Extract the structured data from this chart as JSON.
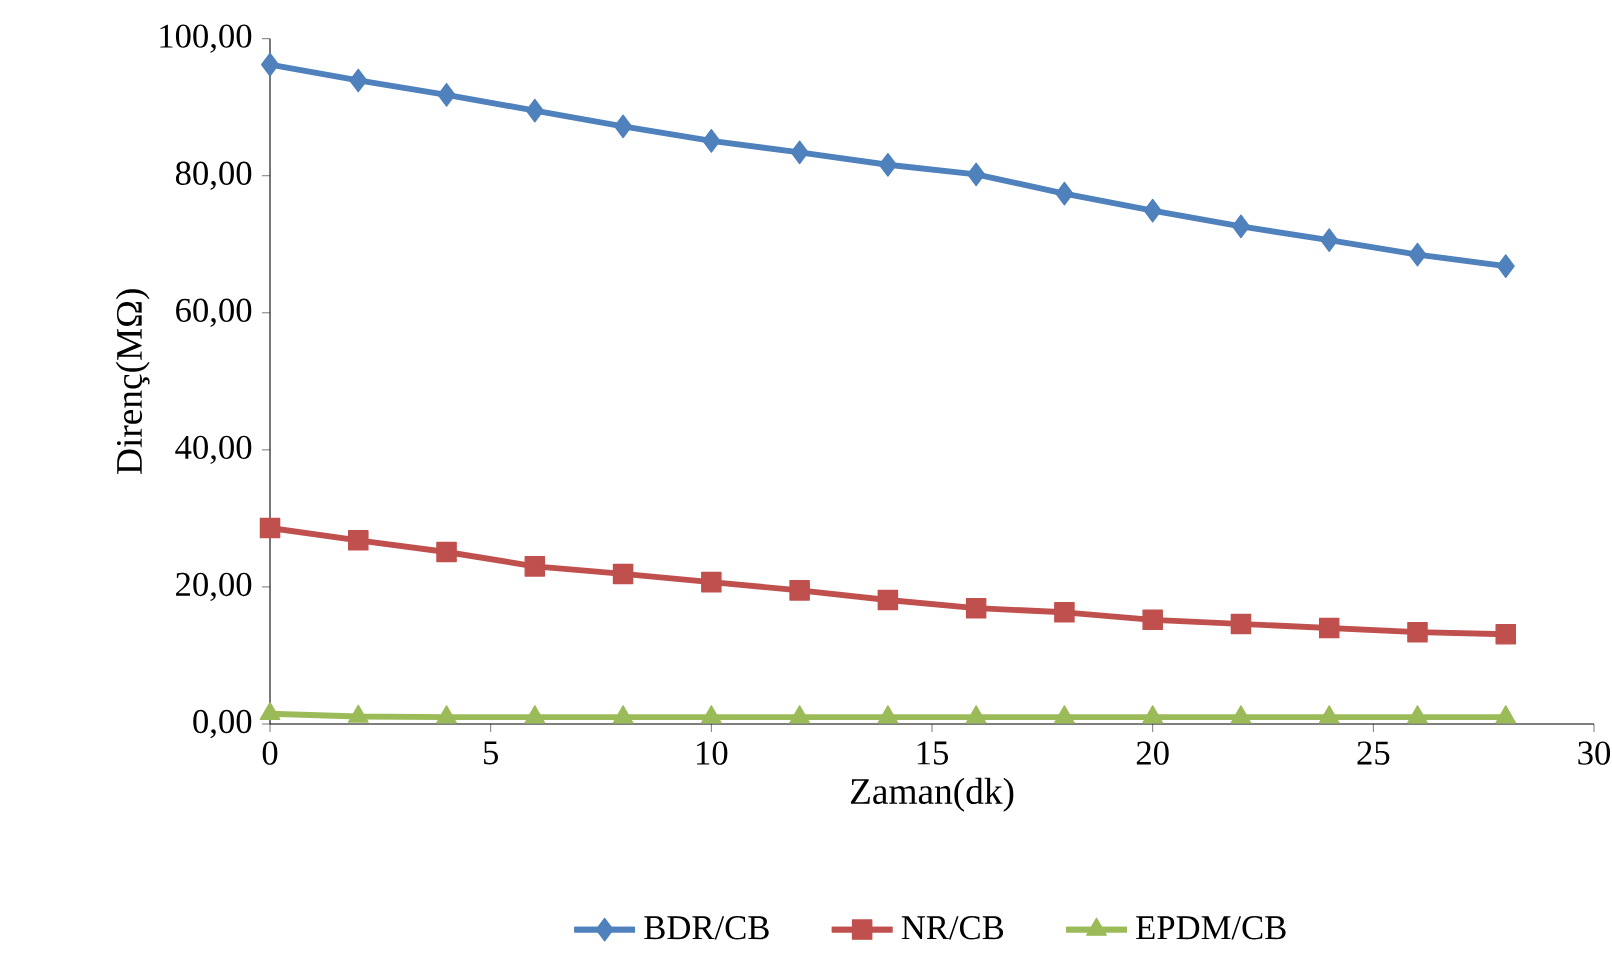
{
  "chart_data": {
    "type": "line",
    "xlabel": "Zaman(dk)",
    "ylabel": "Direnç(MΩ)",
    "x": [
      0,
      2,
      4,
      6,
      8,
      10,
      12,
      14,
      16,
      18,
      20,
      22,
      24,
      26,
      28
    ],
    "series": [
      {
        "name": "BDR/CB",
        "color": "#4f81bd",
        "marker": "diamond",
        "values": [
          96.2,
          93.9,
          91.8,
          89.5,
          87.2,
          85.1,
          83.4,
          81.6,
          80.2,
          77.4,
          74.9,
          72.6,
          70.6,
          68.5,
          66.8
        ]
      },
      {
        "name": "NR/CB",
        "color": "#c0504d",
        "marker": "square",
        "values": [
          28.6,
          26.8,
          25.1,
          23.0,
          21.9,
          20.7,
          19.5,
          18.1,
          16.9,
          16.3,
          15.2,
          14.6,
          14.0,
          13.4,
          13.1
        ]
      },
      {
        "name": "EPDM/CB",
        "color": "#9bbb59",
        "marker": "triangle",
        "values": [
          1.5,
          1.1,
          1.0,
          1.0,
          1.0,
          1.0,
          1.0,
          1.0,
          1.0,
          1.0,
          1.0,
          1.0,
          1.0,
          1.0,
          1.0
        ]
      }
    ],
    "xlim": [
      0,
      30
    ],
    "xticks": [
      0,
      5,
      10,
      15,
      20,
      25,
      30
    ],
    "ylim": [
      0,
      100
    ],
    "yticks": [
      {
        "value": 0,
        "label": "0,00"
      },
      {
        "value": 20,
        "label": "20,00"
      },
      {
        "value": 40,
        "label": "40,00"
      },
      {
        "value": 60,
        "label": "60,00"
      },
      {
        "value": 80,
        "label": "80,00"
      },
      {
        "value": 100,
        "label": "100,00"
      }
    ],
    "grid": false,
    "legend": "bottom",
    "line_style": "solid"
  }
}
